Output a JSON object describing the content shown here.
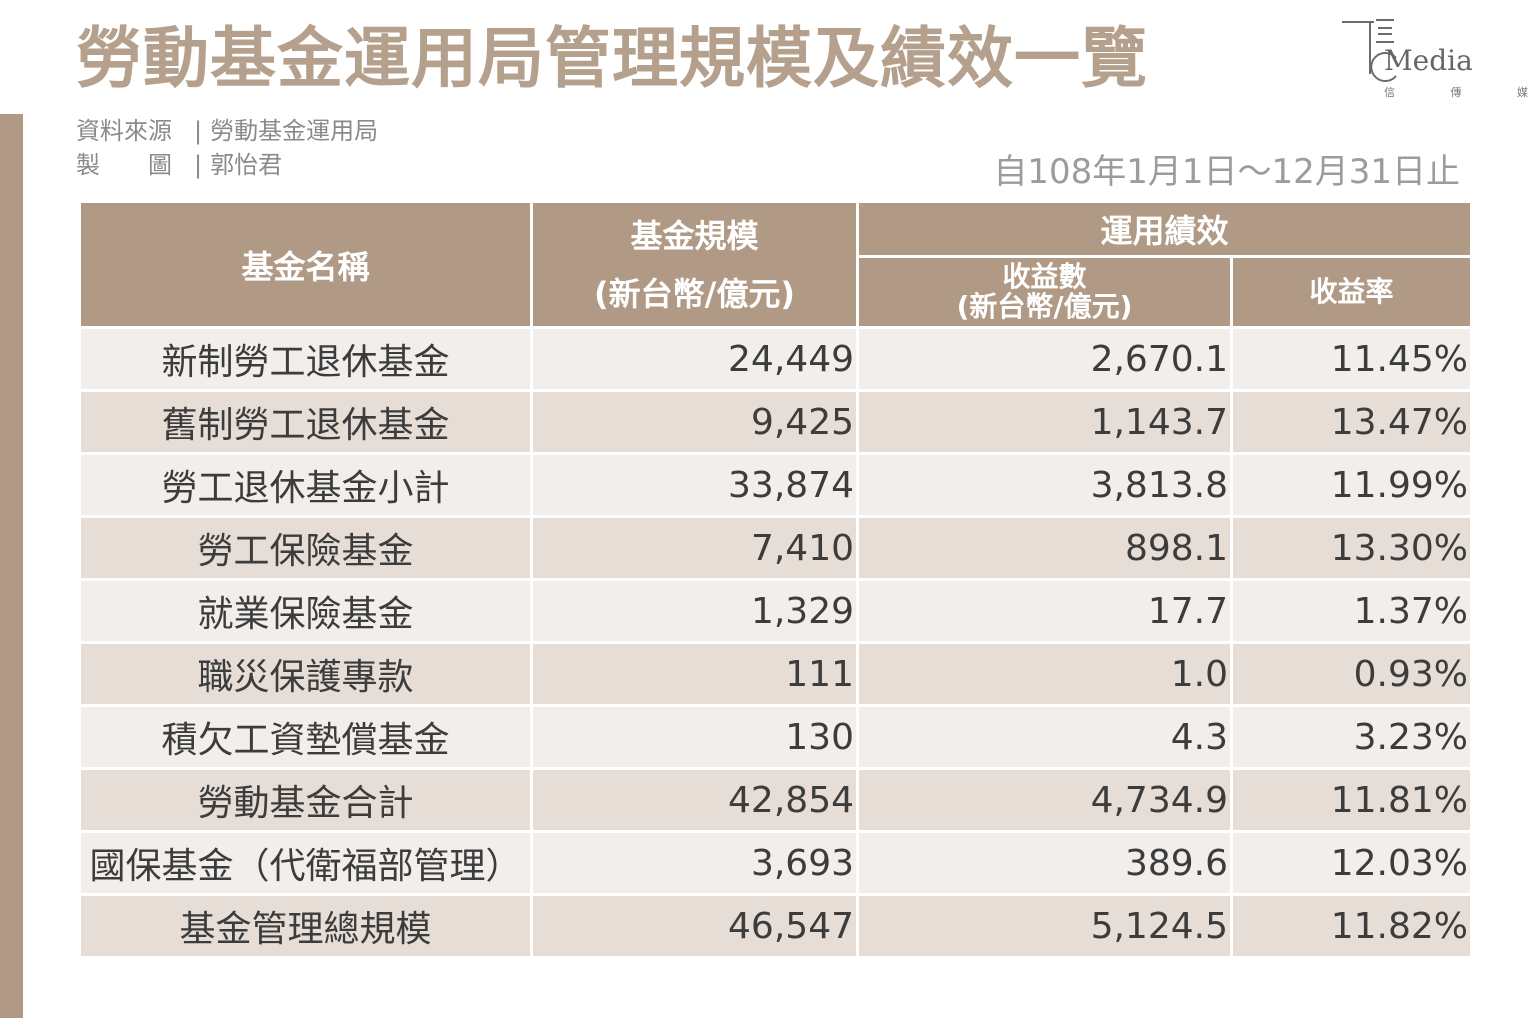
{
  "title": "勞動基金運用局管理規模及績效一覽",
  "logo": {
    "word": "Media",
    "sub": "信 傳 媒"
  },
  "source": {
    "label": "資料來源",
    "value": "勞動基金運用局"
  },
  "maker": {
    "label": "製　　圖",
    "value": "郭怡君"
  },
  "period": "自108年1月1日～12月31日止",
  "chart_data": {
    "type": "table",
    "headers": {
      "name": "基金名稱",
      "size_line1": "基金規模",
      "size_line2": "(新台幣/億元)",
      "performance": "運用績效",
      "income_line1": "收益數",
      "income_line2": "(新台幣/億元)",
      "rate": "收益率"
    },
    "rows": [
      {
        "name": "新制勞工退休基金",
        "size": "24,449",
        "income": "2,670.1",
        "rate": "11.45%"
      },
      {
        "name": "舊制勞工退休基金",
        "size": "9,425",
        "income": "1,143.7",
        "rate": "13.47%"
      },
      {
        "name": "勞工退休基金小計",
        "size": "33,874",
        "income": "3,813.8",
        "rate": "11.99%"
      },
      {
        "name": "勞工保險基金",
        "size": "7,410",
        "income": "898.1",
        "rate": "13.30%"
      },
      {
        "name": "就業保險基金",
        "size": "1,329",
        "income": "17.7",
        "rate": "1.37%"
      },
      {
        "name": "職災保護專款",
        "size": "111",
        "income": "1.0",
        "rate": "0.93%"
      },
      {
        "name": "積欠工資墊償基金",
        "size": "130",
        "income": "4.3",
        "rate": "3.23%"
      },
      {
        "name": "勞動基金合計",
        "size": "42,854",
        "income": "4,734.9",
        "rate": "11.81%"
      },
      {
        "name": "國保基金（代衛福部管理）",
        "size": "3,693",
        "income": "389.6",
        "rate": "12.03%"
      },
      {
        "name": "基金管理總規模",
        "size": "46,547",
        "income": "5,124.5",
        "rate": "11.82%"
      }
    ]
  },
  "colors": {
    "header": "#b09a85",
    "row_light": "#f1eeeb",
    "row_dark": "#e6ddd6",
    "title": "#b4a08d"
  }
}
